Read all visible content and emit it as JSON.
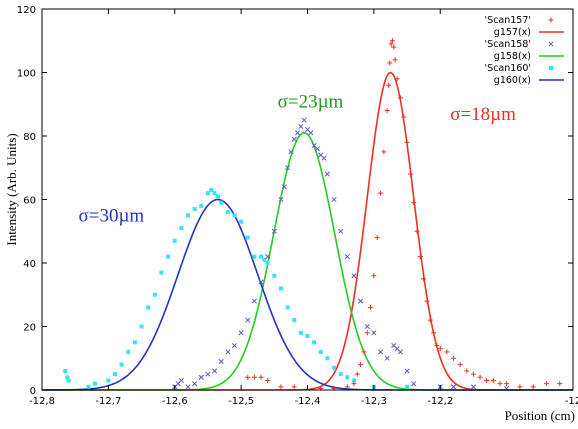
{
  "chart_data": {
    "type": "scatter",
    "xlabel": "Position (cm)",
    "ylabel": "Intensity (Arb. Units)",
    "xlim": [
      -12.8,
      -12.0
    ],
    "ylim": [
      0,
      120
    ],
    "x_ticks": [
      "-12,8",
      "-12,7",
      "-12,6",
      "-12,5",
      "-12,4",
      "-12,3",
      "-12,2",
      "-12"
    ],
    "x_tick_values": [
      -12.8,
      -12.7,
      -12.6,
      -12.5,
      -12.4,
      -12.3,
      -12.2,
      -12.0
    ],
    "y_ticks": [
      "0",
      "20",
      "40",
      "60",
      "80",
      "100",
      "120"
    ],
    "y_tick_values": [
      0,
      20,
      40,
      60,
      80,
      100,
      120
    ],
    "grid": false,
    "legend_position": "top-right",
    "legend": [
      {
        "label": "'Scan157'",
        "kind": "marker",
        "marker": "plus",
        "color": "#e8321e"
      },
      {
        "label": "g157(x)",
        "kind": "line",
        "color": "#e8321e"
      },
      {
        "label": "'Scan158'",
        "kind": "marker",
        "marker": "cross",
        "color": "#5a5ac8"
      },
      {
        "label": "g158(x)",
        "kind": "line",
        "color": "#22cc22"
      },
      {
        "label": "'Scan160'",
        "kind": "marker",
        "marker": "square",
        "color": "#33e4f4"
      },
      {
        "label": "g160(x)",
        "kind": "line",
        "color": "#2233c0"
      }
    ],
    "fits": [
      {
        "name": "g157(x)",
        "color": "#e8321e",
        "center": -12.275,
        "amplitude": 100,
        "sigma": 0.035
      },
      {
        "name": "g158(x)",
        "color": "#22cc22",
        "center": -12.405,
        "amplitude": 81,
        "sigma": 0.046
      },
      {
        "name": "g160(x)",
        "color": "#2233c0",
        "center": -12.535,
        "amplitude": 60,
        "sigma": 0.06
      }
    ],
    "series": [
      {
        "name": "'Scan157'",
        "marker": "plus",
        "color": "#e8321e",
        "points": [
          [
            -12.49,
            4
          ],
          [
            -12.48,
            4
          ],
          [
            -12.47,
            4
          ],
          [
            -12.46,
            3
          ],
          [
            -12.44,
            1
          ],
          [
            -12.42,
            1
          ],
          [
            -12.38,
            0.5
          ],
          [
            -12.36,
            0.5
          ],
          [
            -12.34,
            1
          ],
          [
            -12.33,
            2
          ],
          [
            -12.325,
            5
          ],
          [
            -12.32,
            8
          ],
          [
            -12.315,
            12
          ],
          [
            -12.31,
            18
          ],
          [
            -12.305,
            26
          ],
          [
            -12.3,
            36
          ],
          [
            -12.295,
            48
          ],
          [
            -12.29,
            62
          ],
          [
            -12.285,
            75
          ],
          [
            -12.28,
            88
          ],
          [
            -12.278,
            96
          ],
          [
            -12.276,
            103
          ],
          [
            -12.274,
            109
          ],
          [
            -12.272,
            110
          ],
          [
            -12.27,
            108
          ],
          [
            -12.268,
            104
          ],
          [
            -12.265,
            98
          ],
          [
            -12.26,
            92
          ],
          [
            -12.255,
            86
          ],
          [
            -12.25,
            78
          ],
          [
            -12.245,
            68
          ],
          [
            -12.24,
            59
          ],
          [
            -12.235,
            50
          ],
          [
            -12.23,
            42
          ],
          [
            -12.225,
            35
          ],
          [
            -12.22,
            28
          ],
          [
            -12.215,
            22
          ],
          [
            -12.21,
            18
          ],
          [
            -12.205,
            14
          ],
          [
            -12.2,
            13
          ],
          [
            -12.19,
            12
          ],
          [
            -12.18,
            10
          ],
          [
            -12.17,
            8
          ],
          [
            -12.16,
            6
          ],
          [
            -12.15,
            5
          ],
          [
            -12.14,
            4
          ],
          [
            -12.13,
            3
          ],
          [
            -12.12,
            3
          ],
          [
            -12.11,
            2
          ],
          [
            -12.1,
            2
          ],
          [
            -12.08,
            1
          ],
          [
            -12.06,
            1
          ],
          [
            -12.04,
            2
          ],
          [
            -12.02,
            2
          ]
        ]
      },
      {
        "name": "'Scan158'",
        "marker": "cross",
        "color": "#5a5ac8",
        "points": [
          [
            -12.6,
            1
          ],
          [
            -12.595,
            2
          ],
          [
            -12.59,
            3
          ],
          [
            -12.58,
            1
          ],
          [
            -12.57,
            2
          ],
          [
            -12.56,
            4
          ],
          [
            -12.55,
            5
          ],
          [
            -12.54,
            6
          ],
          [
            -12.53,
            9
          ],
          [
            -12.52,
            12
          ],
          [
            -12.51,
            14
          ],
          [
            -12.5,
            18
          ],
          [
            -12.49,
            22
          ],
          [
            -12.48,
            28
          ],
          [
            -12.47,
            34
          ],
          [
            -12.46,
            42
          ],
          [
            -12.45,
            50
          ],
          [
            -12.44,
            60
          ],
          [
            -12.435,
            64
          ],
          [
            -12.43,
            70
          ],
          [
            -12.425,
            75
          ],
          [
            -12.42,
            79
          ],
          [
            -12.415,
            81
          ],
          [
            -12.41,
            83
          ],
          [
            -12.405,
            85
          ],
          [
            -12.4,
            82
          ],
          [
            -12.395,
            81
          ],
          [
            -12.39,
            77
          ],
          [
            -12.385,
            76
          ],
          [
            -12.38,
            74
          ],
          [
            -12.375,
            73
          ],
          [
            -12.37,
            68
          ],
          [
            -12.36,
            60
          ],
          [
            -12.35,
            50
          ],
          [
            -12.34,
            42
          ],
          [
            -12.33,
            36
          ],
          [
            -12.32,
            28
          ],
          [
            -12.31,
            20
          ],
          [
            -12.3,
            18
          ],
          [
            -12.29,
            12
          ],
          [
            -12.28,
            10
          ],
          [
            -12.27,
            14
          ],
          [
            -12.265,
            13
          ],
          [
            -12.26,
            12
          ],
          [
            -12.25,
            6
          ],
          [
            -12.24,
            2
          ],
          [
            -12.2,
            1
          ],
          [
            -12.18,
            1
          ],
          [
            -12.15,
            1
          ],
          [
            -12.1,
            0.5
          ]
        ]
      },
      {
        "name": "'Scan160'",
        "marker": "square",
        "color": "#33e4f4",
        "points": [
          [
            -12.765,
            6
          ],
          [
            -12.762,
            4
          ],
          [
            -12.76,
            3
          ],
          [
            -12.73,
            1
          ],
          [
            -12.72,
            2
          ],
          [
            -12.7,
            3
          ],
          [
            -12.69,
            5
          ],
          [
            -12.68,
            8
          ],
          [
            -12.67,
            12
          ],
          [
            -12.66,
            15
          ],
          [
            -12.65,
            20
          ],
          [
            -12.64,
            26
          ],
          [
            -12.63,
            30
          ],
          [
            -12.62,
            37
          ],
          [
            -12.61,
            42
          ],
          [
            -12.6,
            47
          ],
          [
            -12.59,
            51
          ],
          [
            -12.58,
            55
          ],
          [
            -12.57,
            57
          ],
          [
            -12.56,
            58
          ],
          [
            -12.55,
            62
          ],
          [
            -12.545,
            63
          ],
          [
            -12.54,
            62
          ],
          [
            -12.535,
            61
          ],
          [
            -12.53,
            59
          ],
          [
            -12.52,
            56
          ],
          [
            -12.51,
            55
          ],
          [
            -12.5,
            53
          ],
          [
            -12.49,
            48
          ],
          [
            -12.48,
            42
          ],
          [
            -12.47,
            42
          ],
          [
            -12.465,
            41
          ],
          [
            -12.46,
            40
          ],
          [
            -12.45,
            36
          ],
          [
            -12.44,
            32
          ],
          [
            -12.43,
            26
          ],
          [
            -12.42,
            22
          ],
          [
            -12.41,
            18
          ],
          [
            -12.4,
            17
          ],
          [
            -12.39,
            15
          ],
          [
            -12.38,
            12
          ],
          [
            -12.37,
            10
          ],
          [
            -12.36,
            7
          ],
          [
            -12.35,
            5
          ],
          [
            -12.34,
            4
          ],
          [
            -12.33,
            3
          ],
          [
            -12.3,
            1
          ],
          [
            -12.25,
            1
          ]
        ]
      }
    ],
    "annotations": [
      {
        "text": "σ=18µm",
        "color": "#e8321e",
        "x": -12.185,
        "y": 85
      },
      {
        "text": "σ=23µm",
        "color": "#1a9a1a",
        "x": -12.445,
        "y": 89
      },
      {
        "text": "σ=30µm",
        "color": "#2233c0",
        "x": -12.745,
        "y": 53
      }
    ]
  }
}
